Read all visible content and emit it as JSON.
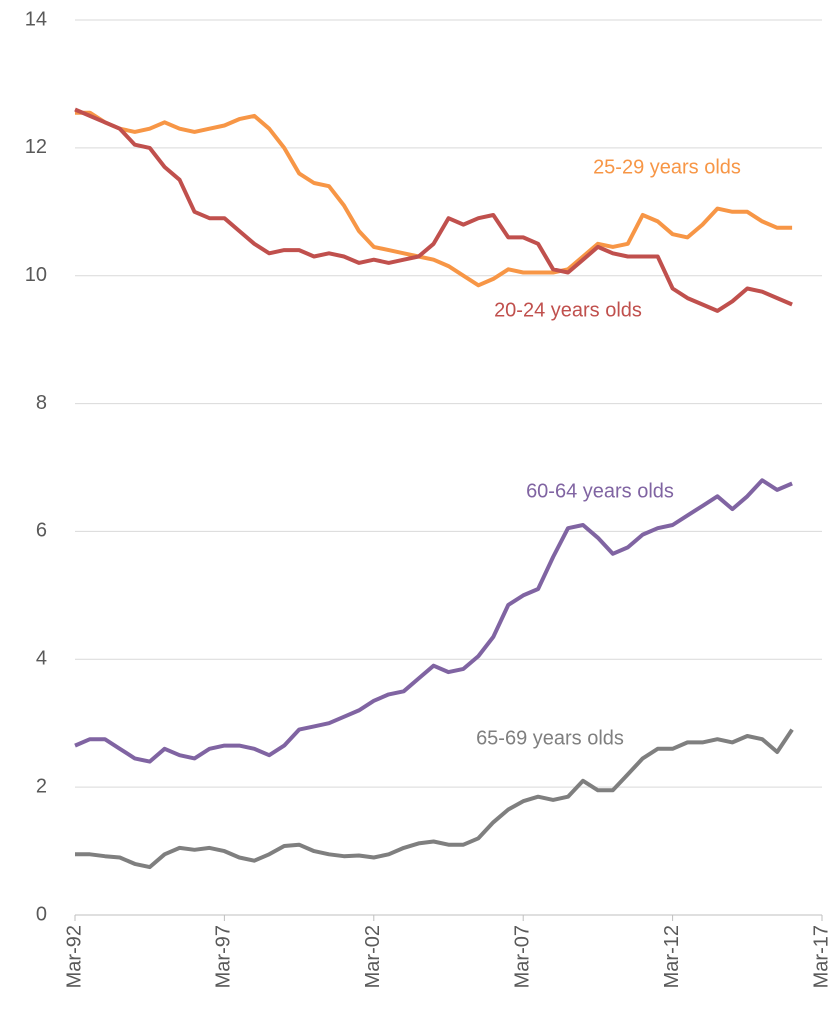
{
  "chart_data": {
    "type": "line",
    "x": [
      "Mar-92",
      "Sep-92",
      "Mar-93",
      "Sep-93",
      "Mar-94",
      "Sep-94",
      "Mar-95",
      "Sep-95",
      "Mar-96",
      "Sep-96",
      "Mar-97",
      "Sep-97",
      "Mar-98",
      "Sep-98",
      "Mar-99",
      "Sep-99",
      "Mar-00",
      "Sep-00",
      "Mar-01",
      "Sep-01",
      "Mar-02",
      "Sep-02",
      "Mar-03",
      "Sep-03",
      "Mar-04",
      "Sep-04",
      "Mar-05",
      "Sep-05",
      "Mar-06",
      "Sep-06",
      "Mar-07",
      "Sep-07",
      "Mar-08",
      "Sep-08",
      "Mar-09",
      "Sep-09",
      "Mar-10",
      "Sep-10",
      "Mar-11",
      "Sep-11",
      "Mar-12",
      "Sep-12",
      "Mar-13",
      "Sep-13",
      "Mar-14",
      "Sep-14",
      "Mar-15",
      "Sep-15",
      "Mar-16",
      "Sep-16",
      "Mar-17"
    ],
    "series": [
      {
        "name": "25-29 years olds",
        "color": "#f79646",
        "values": [
          12.55,
          12.55,
          12.4,
          12.3,
          12.25,
          12.3,
          12.4,
          12.3,
          12.25,
          12.3,
          12.35,
          12.45,
          12.5,
          12.3,
          12.0,
          11.6,
          11.45,
          11.4,
          11.1,
          10.7,
          10.45,
          10.4,
          10.35,
          10.3,
          10.25,
          10.15,
          10.0,
          9.85,
          9.95,
          10.1,
          10.05,
          10.05,
          10.05,
          10.1,
          10.3,
          10.5,
          10.45,
          10.5,
          10.95,
          10.85,
          10.65,
          10.6,
          10.8,
          11.05,
          11.0,
          11.0,
          10.85,
          10.75,
          10.75,
          null,
          null
        ]
      },
      {
        "name": "20-24 years olds",
        "color": "#c0504d",
        "values": [
          12.6,
          12.5,
          12.4,
          12.3,
          12.05,
          12.0,
          11.7,
          11.5,
          11.0,
          10.9,
          10.9,
          10.7,
          10.5,
          10.35,
          10.4,
          10.4,
          10.3,
          10.35,
          10.3,
          10.2,
          10.25,
          10.2,
          10.25,
          10.3,
          10.5,
          10.9,
          10.8,
          10.9,
          10.95,
          10.6,
          10.6,
          10.5,
          10.1,
          10.05,
          10.25,
          10.45,
          10.35,
          10.3,
          10.3,
          10.3,
          9.8,
          9.65,
          9.55,
          9.45,
          9.6,
          9.8,
          9.75,
          9.65,
          9.55,
          null,
          null
        ]
      },
      {
        "name": "60-64 years olds",
        "color": "#8064a2",
        "values": [
          2.65,
          2.75,
          2.75,
          2.6,
          2.45,
          2.4,
          2.6,
          2.5,
          2.45,
          2.6,
          2.65,
          2.65,
          2.6,
          2.5,
          2.65,
          2.9,
          2.95,
          3.0,
          3.1,
          3.2,
          3.35,
          3.45,
          3.5,
          3.7,
          3.9,
          3.8,
          3.85,
          4.05,
          4.35,
          4.85,
          5.0,
          5.1,
          5.6,
          6.05,
          6.1,
          5.9,
          5.65,
          5.75,
          5.95,
          6.05,
          6.1,
          6.25,
          6.4,
          6.55,
          6.35,
          6.55,
          6.8,
          6.65,
          6.75,
          null,
          null
        ]
      },
      {
        "name": "65-69 years olds",
        "color": "#7f7f7f",
        "values": [
          0.95,
          0.95,
          0.92,
          0.9,
          0.8,
          0.75,
          0.95,
          1.05,
          1.02,
          1.05,
          1.0,
          0.9,
          0.85,
          0.95,
          1.08,
          1.1,
          1.0,
          0.95,
          0.92,
          0.93,
          0.9,
          0.95,
          1.05,
          1.12,
          1.15,
          1.1,
          1.1,
          1.2,
          1.45,
          1.65,
          1.78,
          1.85,
          1.8,
          1.85,
          2.1,
          1.95,
          1.95,
          2.2,
          2.45,
          2.6,
          2.6,
          2.7,
          2.7,
          2.75,
          2.7,
          2.8,
          2.75,
          2.55,
          2.9,
          null,
          null
        ]
      }
    ],
    "xticks": [
      "Mar-92",
      "Mar-97",
      "Mar-02",
      "Mar-07",
      "Mar-12",
      "Mar-17"
    ],
    "ylim": [
      0,
      14
    ],
    "yticks": [
      0,
      2,
      4,
      6,
      8,
      10,
      12,
      14
    ],
    "grid": true
  }
}
